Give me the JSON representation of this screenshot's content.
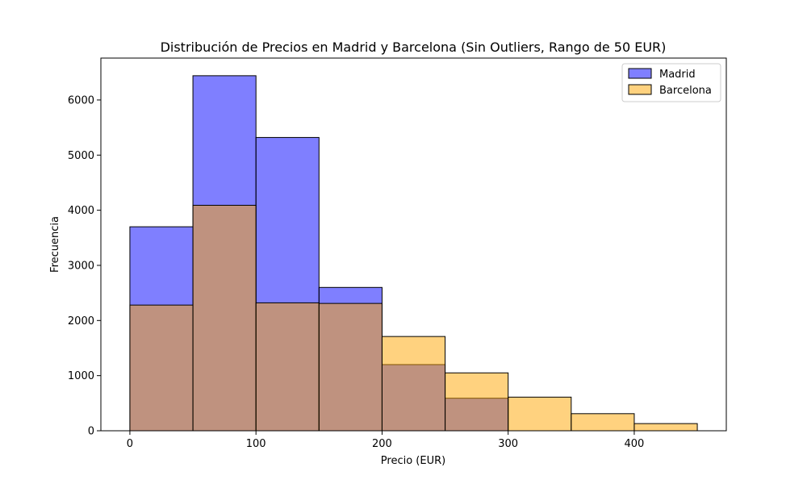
{
  "chart_data": {
    "type": "bar",
    "title": "Distribución de Precios en Madrid y Barcelona (Sin Outliers, Rango de 50 EUR)",
    "xlabel": "Precio (EUR)",
    "ylabel": "Frecuencia",
    "xlim": [
      -23,
      473
    ],
    "ylim": [
      0,
      6760
    ],
    "x_ticks": [
      0,
      100,
      200,
      300,
      400
    ],
    "x_tick_labels": [
      "0",
      "100",
      "200",
      "300",
      "400"
    ],
    "y_ticks": [
      0,
      1000,
      2000,
      3000,
      4000,
      5000,
      6000
    ],
    "y_tick_labels": [
      "0",
      "1000",
      "2000",
      "3000",
      "4000",
      "5000",
      "6000"
    ],
    "bin_edges": [
      0,
      50,
      100,
      150,
      200,
      250,
      300,
      350,
      400,
      450
    ],
    "series": [
      {
        "name": "Madrid",
        "color": "#0000ff",
        "opacity": 0.5,
        "values": [
          3700,
          6440,
          5320,
          2600,
          1200,
          590,
          0,
          0,
          0
        ]
      },
      {
        "name": "Barcelona",
        "color": "#ffa500",
        "opacity": 0.5,
        "values": [
          2280,
          4090,
          2320,
          2310,
          1710,
          1050,
          610,
          310,
          130
        ]
      }
    ],
    "legend_position": "top-right",
    "grid": false
  }
}
